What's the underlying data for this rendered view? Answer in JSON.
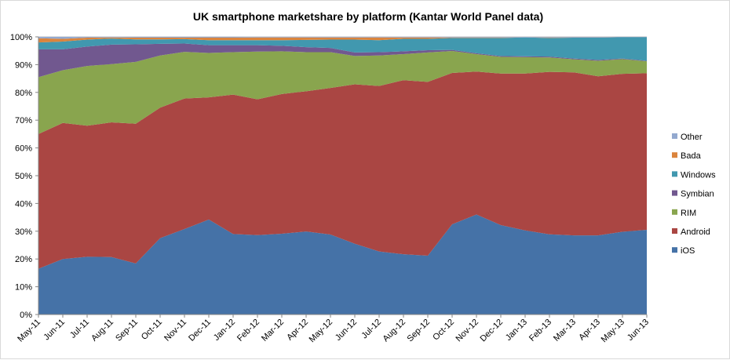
{
  "chart_data": {
    "type": "area",
    "stacked": true,
    "percent": true,
    "title": "UK smartphone marketshare by platform (Kantar World Panel data)",
    "xlabel": "",
    "ylabel": "",
    "ylim": [
      0,
      100
    ],
    "yticks": [
      "0%",
      "10%",
      "20%",
      "30%",
      "40%",
      "50%",
      "60%",
      "70%",
      "80%",
      "90%",
      "100%"
    ],
    "grid": true,
    "legend_position": "right",
    "categories": [
      "May-11",
      "Jun-11",
      "Jul-11",
      "Aug-11",
      "Sep-11",
      "Oct-11",
      "Nov-11",
      "Dec-11",
      "Jan-12",
      "Feb-12",
      "Mar-12",
      "Apr-12",
      "May-12",
      "Jun-12",
      "Jul-12",
      "Aug-12",
      "Sep-12",
      "Oct-12",
      "Nov-12",
      "Dec-12",
      "Jan-13",
      "Feb-13",
      "Mar-13",
      "Apr-13",
      "May-13",
      "Jun-13"
    ],
    "series": [
      {
        "name": "iOS",
        "color": "#4572a7",
        "values": [
          16.5,
          20.0,
          20.8,
          20.7,
          18.4,
          27.5,
          30.8,
          34.2,
          29.0,
          28.6,
          29.1,
          29.9,
          28.8,
          25.5,
          22.7,
          21.7,
          21.2,
          32.5,
          36.0,
          32.2,
          30.3,
          28.9,
          28.5,
          28.5,
          29.8,
          30.5
        ]
      },
      {
        "name": "Android",
        "color": "#aa4643",
        "values": [
          48.5,
          49.0,
          47.2,
          48.5,
          50.3,
          47.0,
          47.0,
          44.0,
          50.2,
          48.9,
          50.3,
          50.5,
          52.8,
          57.4,
          59.6,
          62.7,
          62.6,
          54.5,
          51.5,
          54.6,
          56.5,
          58.5,
          58.7,
          57.3,
          56.9,
          56.4
        ]
      },
      {
        "name": "RIM",
        "color": "#89a54e",
        "values": [
          20.5,
          19.0,
          21.5,
          21.0,
          22.3,
          18.8,
          16.8,
          16.0,
          15.3,
          17.2,
          15.4,
          14.1,
          12.9,
          10.2,
          11.0,
          9.4,
          10.6,
          7.9,
          6.3,
          6.0,
          5.9,
          5.2,
          4.7,
          5.6,
          5.3,
          4.3
        ]
      },
      {
        "name": "Symbian",
        "color": "#71588f",
        "values": [
          10.0,
          7.5,
          7.0,
          7.0,
          6.3,
          4.2,
          3.0,
          2.8,
          2.5,
          2.3,
          2.0,
          1.8,
          1.5,
          1.3,
          1.2,
          1.0,
          0.8,
          0.4,
          0.3,
          0.3,
          0.3,
          0.3,
          0.3,
          0.3,
          0.2,
          0.2
        ]
      },
      {
        "name": "Windows",
        "color": "#4198af",
        "values": [
          2.5,
          2.8,
          2.5,
          2.2,
          1.8,
          1.6,
          1.6,
          1.8,
          1.8,
          1.8,
          2.0,
          2.6,
          3.0,
          4.6,
          4.3,
          4.5,
          4.1,
          4.3,
          5.5,
          6.5,
          6.8,
          6.7,
          7.5,
          8.0,
          7.7,
          8.5
        ]
      },
      {
        "name": "Bada",
        "color": "#db843d",
        "values": [
          1.5,
          1.0,
          0.7,
          0.4,
          0.6,
          0.6,
          0.5,
          0.9,
          0.9,
          1.0,
          1.0,
          0.9,
          0.8,
          0.8,
          1.0,
          0.5,
          0.5,
          0.2,
          0.2,
          0.2,
          0.0,
          0.2,
          0.1,
          0.1,
          0.0,
          0.0
        ]
      },
      {
        "name": "Other",
        "color": "#93a9cf",
        "values": [
          0.5,
          0.7,
          0.3,
          0.2,
          0.3,
          0.3,
          0.3,
          0.3,
          0.3,
          0.2,
          0.2,
          0.2,
          0.2,
          0.2,
          0.2,
          0.2,
          0.2,
          0.2,
          0.2,
          0.2,
          0.2,
          0.2,
          0.2,
          0.2,
          0.1,
          0.1
        ]
      }
    ],
    "legend_order": [
      "Other",
      "Bada",
      "Windows",
      "Symbian",
      "RIM",
      "Android",
      "iOS"
    ]
  }
}
